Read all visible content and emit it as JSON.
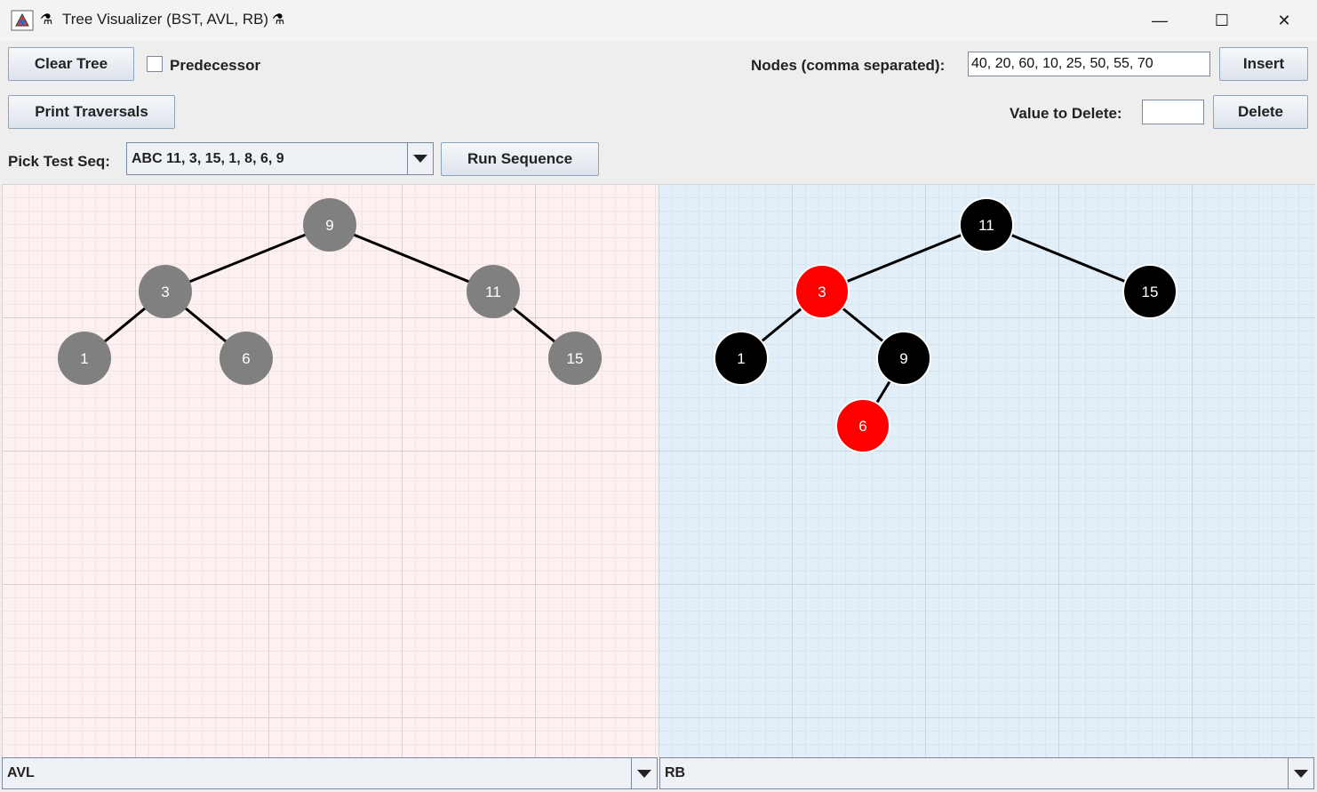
{
  "window": {
    "title": "Tree Visualizer (BST, AVL, RB)",
    "minimize_glyph": "—",
    "maximize_glyph": "☐",
    "close_glyph": "✕"
  },
  "toolbar": {
    "clear_tree": "Clear Tree",
    "predecessor_label": "Predecessor",
    "predecessor_checked": false,
    "nodes_label": "Nodes (comma separated):",
    "nodes_value": "40, 20, 60, 10, 25, 50, 55, 70",
    "insert": "Insert",
    "print_traversals": "Print Traversals",
    "delete_label": "Value to Delete:",
    "delete_value": "",
    "delete": "Delete",
    "pick_label": "Pick Test Seq:",
    "pick_selected": "ABC 11, 3, 15, 1, 8, 6, 9",
    "run_sequence": "Run Sequence"
  },
  "colors": {
    "avl_node": "#808080",
    "rb_red": "#ff0000",
    "rb_black": "#000000",
    "left_panel_bg": "#fcf1f0",
    "right_panel_bg": "#e3eff8"
  },
  "left_tree": {
    "type_selected": "AVL",
    "nodes": [
      {
        "label": "9"
      },
      {
        "label": "3"
      },
      {
        "label": "11"
      },
      {
        "label": "1"
      },
      {
        "label": "6"
      },
      {
        "label": "15"
      }
    ]
  },
  "right_tree": {
    "type_selected": "RB",
    "nodes": [
      {
        "label": "11",
        "color": "black"
      },
      {
        "label": "3",
        "color": "red"
      },
      {
        "label": "15",
        "color": "black"
      },
      {
        "label": "1",
        "color": "black"
      },
      {
        "label": "9",
        "color": "black"
      },
      {
        "label": "6",
        "color": "red"
      }
    ]
  }
}
